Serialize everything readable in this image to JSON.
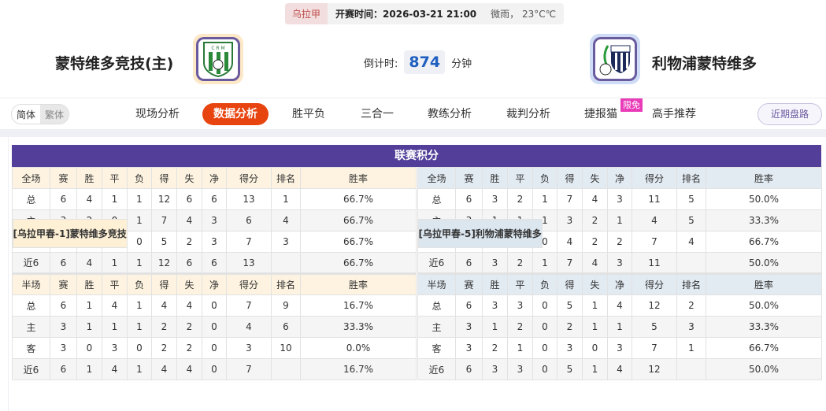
{
  "match": {
    "league": "乌拉甲",
    "time": "开赛时间：2026-03-21 21:00",
    "weather": "微雨，  23°C℃",
    "countdown_label": "倒计时:",
    "countdown_value": "874",
    "countdown_unit": "分钟"
  },
  "home_team": {
    "name": "蒙特维多竞技(主)",
    "logo_text": "CRM"
  },
  "away_team": {
    "name": "利物浦蒙特维多",
    "logo_text": "LFC"
  },
  "nav": {
    "lang": [
      "简体",
      "繁体"
    ],
    "tabs": [
      "现场分析",
      "数据分析",
      "胜平负",
      "三合一",
      "教练分析",
      "裁判分析",
      "捷报猫",
      "高手推荐"
    ],
    "active": "数据分析",
    "badge": "限免",
    "recent": "近期盘路"
  },
  "standings": {
    "title": "联赛积分",
    "columns_full": [
      "全场",
      "赛",
      "胜",
      "平",
      "负",
      "得",
      "失",
      "净",
      "得分",
      "排名",
      "胜率"
    ],
    "columns_half": [
      "半场",
      "赛",
      "胜",
      "平",
      "负",
      "得",
      "失",
      "净",
      "得分",
      "排名",
      "胜率"
    ],
    "home": {
      "label": "[乌拉甲春-1]蒙特维多竞技",
      "full": [
        [
          "总",
          "6",
          "4",
          "1",
          "1",
          "12",
          "6",
          "6",
          "13",
          "1",
          "66.7%"
        ],
        [
          "主",
          "3",
          "2",
          "0",
          "1",
          "7",
          "4",
          "3",
          "6",
          "4",
          "66.7%"
        ],
        [
          "客",
          "3",
          "2",
          "1",
          "0",
          "5",
          "2",
          "3",
          "7",
          "3",
          "66.7%"
        ],
        [
          "近6",
          "6",
          "4",
          "1",
          "1",
          "12",
          "6",
          "6",
          "13",
          "",
          "66.7%"
        ]
      ],
      "half": [
        [
          "总",
          "6",
          "1",
          "4",
          "1",
          "4",
          "4",
          "0",
          "7",
          "9",
          "16.7%"
        ],
        [
          "主",
          "3",
          "1",
          "1",
          "1",
          "2",
          "2",
          "0",
          "4",
          "6",
          "33.3%"
        ],
        [
          "客",
          "3",
          "0",
          "3",
          "0",
          "2",
          "2",
          "0",
          "3",
          "10",
          "0.0%"
        ],
        [
          "近6",
          "6",
          "1",
          "4",
          "1",
          "4",
          "4",
          "0",
          "7",
          "",
          "16.7%"
        ]
      ]
    },
    "away": {
      "label": "[乌拉甲春-5]利物浦蒙特维多",
      "full": [
        [
          "总",
          "6",
          "3",
          "2",
          "1",
          "7",
          "4",
          "3",
          "11",
          "5",
          "50.0%"
        ],
        [
          "主",
          "3",
          "1",
          "1",
          "1",
          "3",
          "2",
          "1",
          "4",
          "5",
          "33.3%"
        ],
        [
          "客",
          "3",
          "2",
          "1",
          "0",
          "4",
          "2",
          "2",
          "7",
          "4",
          "66.7%"
        ],
        [
          "近6",
          "6",
          "3",
          "2",
          "1",
          "7",
          "4",
          "3",
          "11",
          "",
          "50.0%"
        ]
      ],
      "half": [
        [
          "总",
          "6",
          "3",
          "3",
          "0",
          "5",
          "1",
          "4",
          "12",
          "2",
          "50.0%"
        ],
        [
          "主",
          "3",
          "1",
          "2",
          "0",
          "2",
          "1",
          "1",
          "5",
          "3",
          "33.3%"
        ],
        [
          "客",
          "3",
          "2",
          "1",
          "0",
          "3",
          "0",
          "3",
          "7",
          "1",
          "66.7%"
        ],
        [
          "近6",
          "6",
          "3",
          "3",
          "0",
          "5",
          "1",
          "4",
          "12",
          "",
          "50.0%"
        ]
      ]
    }
  }
}
